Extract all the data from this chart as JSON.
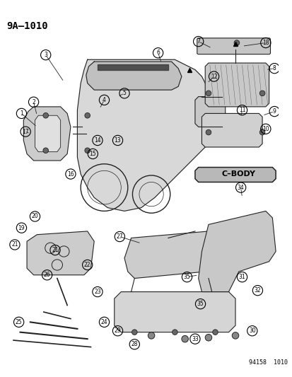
{
  "title": "9A—1010",
  "footer": "94158  1010",
  "cbody_label": "C–BODY",
  "background_color": "#ffffff",
  "text_color": "#000000",
  "figsize": [
    4.14,
    5.33
  ],
  "dpi": 100
}
